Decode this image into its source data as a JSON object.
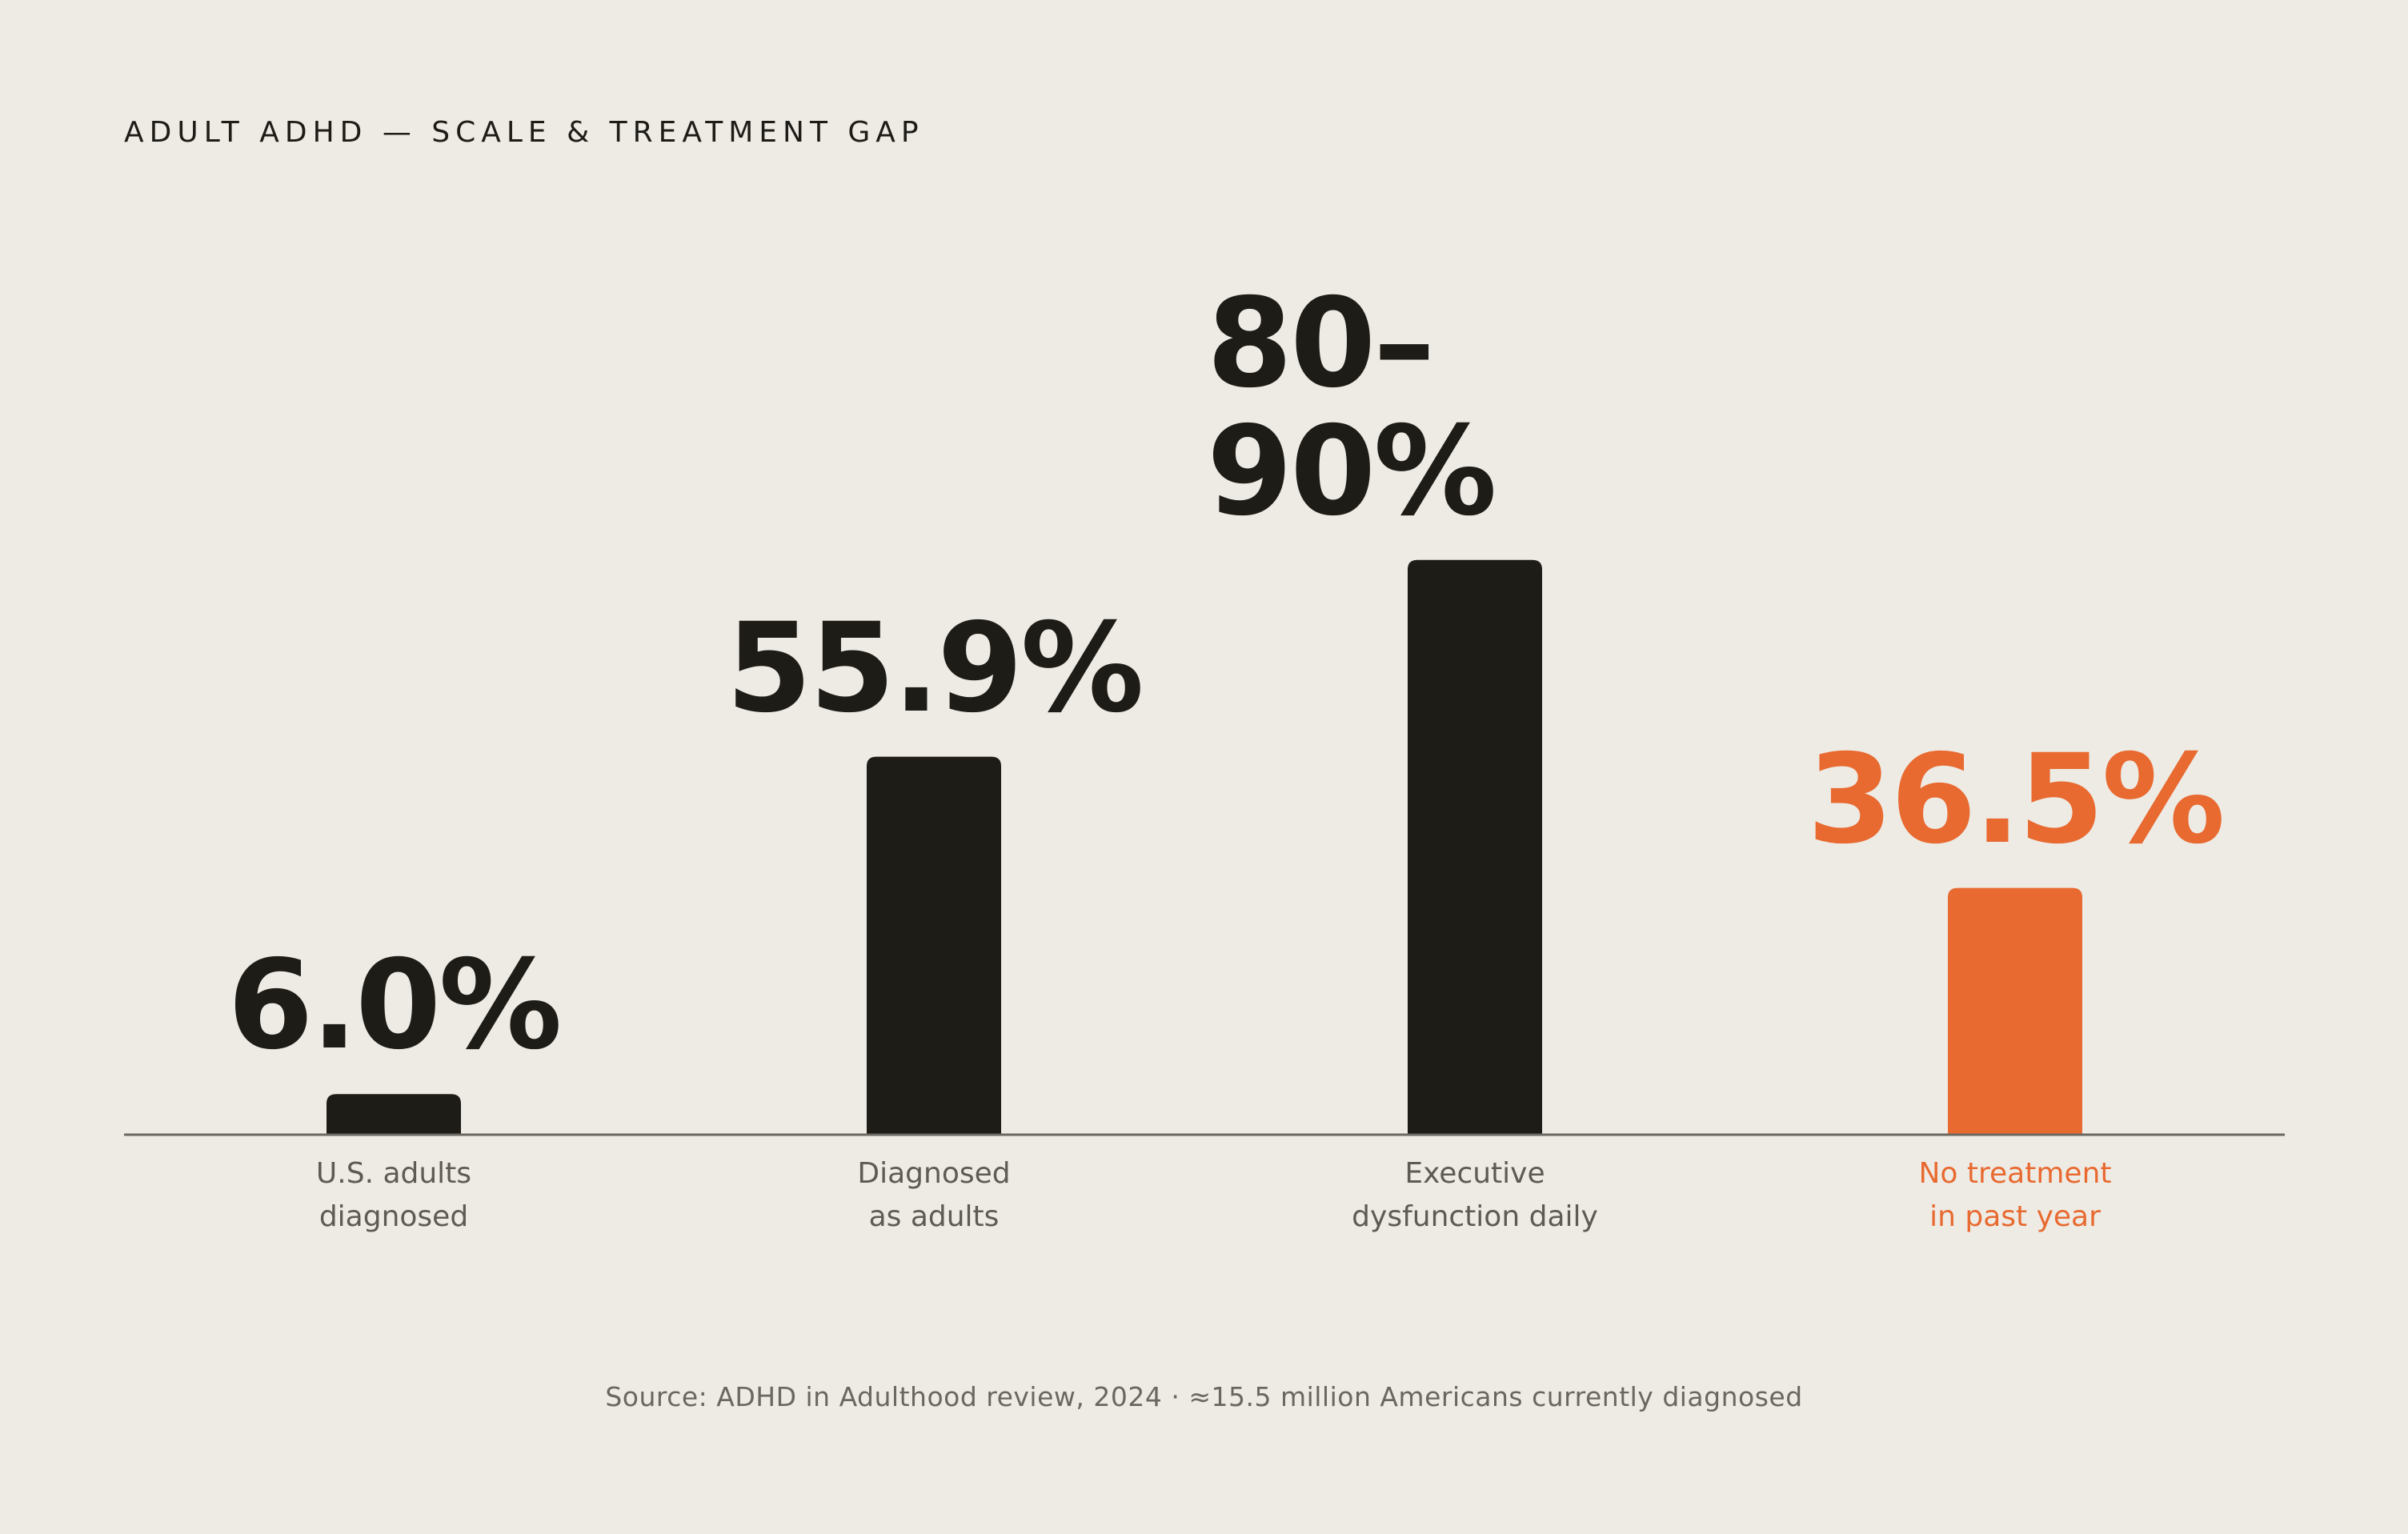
{
  "chart_data": {
    "type": "bar",
    "title": "ADULT ADHD — SCALE & TREATMENT GAP",
    "categories": [
      [
        "U.S. adults",
        "diagnosed"
      ],
      [
        "Diagnosed",
        "as adults"
      ],
      [
        "Executive",
        "dysfunction daily"
      ],
      [
        "No treatment",
        "in past year"
      ]
    ],
    "values": [
      6.0,
      55.9,
      85,
      36.5
    ],
    "value_labels": [
      [
        "6.0%"
      ],
      [
        "55.9%"
      ],
      [
        "80–",
        "90%"
      ],
      [
        "36.5%"
      ]
    ],
    "highlight_index": 3,
    "ylim": [
      0,
      100
    ],
    "xlabel": "",
    "ylabel": "",
    "grid": false,
    "source": "Source: ADHD in Adulthood review, 2024  ·  ≈15.5 million Americans currently diagnosed"
  },
  "colors": {
    "background": "#EEEBE5",
    "bar": "#1E1C17",
    "accent": "#E86A30",
    "baseline": "#6B6862",
    "category_text": "#5E5B55"
  }
}
